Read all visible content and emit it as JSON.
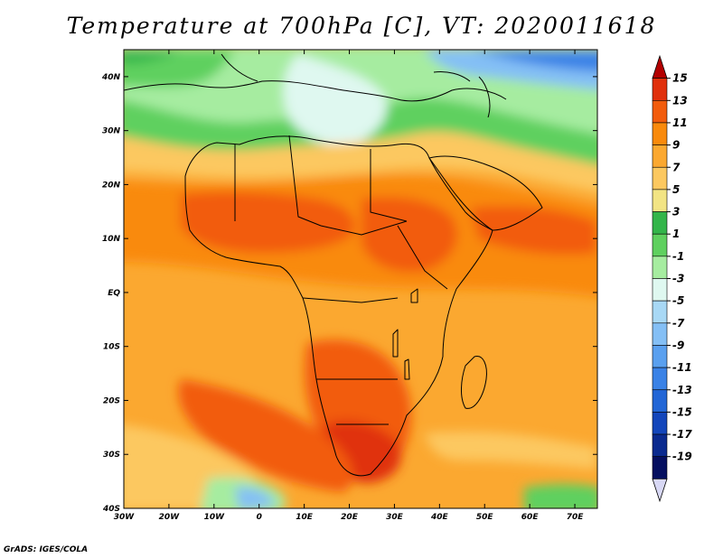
{
  "title": "Temperature at 700hPa [C], VT: 2020011618",
  "credit": "GrADS: IGES/COLA",
  "map": {
    "lat_ticks": [
      "40N",
      "30N",
      "20N",
      "10N",
      "EQ",
      "10S",
      "20S",
      "30S",
      "40S"
    ],
    "lon_ticks": [
      "30W",
      "20W",
      "10W",
      "0",
      "10E",
      "20E",
      "30E",
      "40E",
      "50E",
      "60E",
      "70E"
    ],
    "lon_range": [
      -30,
      75
    ],
    "lat_range": [
      -40,
      45
    ]
  },
  "colorbar": {
    "labels": [
      "15",
      "13",
      "11",
      "9",
      "7",
      "5",
      "3",
      "1",
      "-1",
      "-3",
      "-5",
      "-7",
      "-9",
      "-11",
      "-13",
      "-15",
      "-17",
      "-19"
    ],
    "colors": [
      "#b30000",
      "#e0300c",
      "#f25c0c",
      "#f98a0c",
      "#fba830",
      "#fcc860",
      "#f2e484",
      "#33b54a",
      "#5fd05f",
      "#a6eca0",
      "#dff8f0",
      "#a8d8f5",
      "#84bff5",
      "#5aa0ef",
      "#3a82e6",
      "#2266d6",
      "#1346bb",
      "#0a2a8f",
      "#050f60",
      "#d8d8f5"
    ]
  },
  "chart_data": {
    "type": "heatmap",
    "title": "Temperature at 700hPa [C], VT: 2020011618",
    "xlabel": "",
    "ylabel": "",
    "x_range": [
      -30,
      75
    ],
    "y_range": [
      -40,
      45
    ],
    "x_ticks": [
      "30W",
      "20W",
      "10W",
      "0",
      "10E",
      "20E",
      "30E",
      "40E",
      "50E",
      "60E",
      "70E"
    ],
    "y_ticks": [
      "40N",
      "30N",
      "20N",
      "10N",
      "EQ",
      "10S",
      "20S",
      "30S",
      "40S"
    ],
    "color_levels": [
      -19,
      -17,
      -15,
      -13,
      -11,
      -9,
      -7,
      -5,
      -3,
      -1,
      1,
      3,
      5,
      7,
      9,
      11,
      13,
      15
    ],
    "color_bands": [
      {
        "lat": 42,
        "value": -3
      },
      {
        "lat": 37,
        "value": 1
      },
      {
        "lat": 30,
        "value": 3
      },
      {
        "lat": 25,
        "value": 7
      },
      {
        "lat": 18,
        "value": 10
      },
      {
        "lat": 10,
        "value": 11
      },
      {
        "lat": 0,
        "value": 9
      },
      {
        "lat": -10,
        "value": 9
      },
      {
        "lat": -25,
        "value": 11
      },
      {
        "lat": -32,
        "value": 13
      },
      {
        "lat": -38,
        "value": 3
      }
    ]
  }
}
